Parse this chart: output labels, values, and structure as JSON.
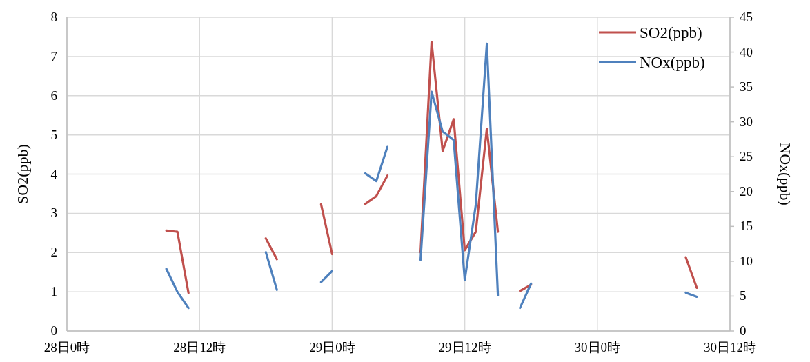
{
  "chart_data": {
    "type": "line",
    "categories": [
      "28日0時",
      null,
      null,
      null,
      null,
      null,
      null,
      null,
      null,
      null,
      null,
      null,
      "28日12時",
      null,
      null,
      null,
      null,
      null,
      null,
      null,
      null,
      null,
      null,
      null,
      "29日0時",
      null,
      null,
      null,
      null,
      null,
      null,
      null,
      null,
      null,
      null,
      null,
      "29日12時",
      null,
      null,
      null,
      null,
      null,
      null,
      null,
      null,
      null,
      null,
      null,
      "30日0時",
      null,
      null,
      null,
      null,
      null,
      null,
      null,
      null,
      null,
      null,
      null,
      "30日12時"
    ],
    "ylim": [
      0,
      8
    ],
    "yticks": [
      0,
      1,
      2,
      3,
      4,
      5,
      6,
      7,
      8
    ],
    "y2lim": [
      0,
      45
    ],
    "y2ticks": [
      0,
      5,
      10,
      15,
      20,
      25,
      30,
      35,
      40,
      45
    ],
    "ylabel": "SO2(ppb)",
    "y2label": "NOx(ppb)",
    "series": [
      {
        "name": "SO2(ppb)",
        "color": "#c0504d",
        "values": [
          null,
          null,
          null,
          null,
          null,
          null,
          null,
          null,
          null,
          2.56,
          2.53,
          0.97,
          null,
          null,
          null,
          null,
          null,
          null,
          2.36,
          1.83,
          null,
          null,
          null,
          3.23,
          1.96,
          null,
          null,
          3.24,
          3.44,
          3.96,
          null,
          null,
          2.0,
          7.37,
          4.59,
          5.4,
          2.06,
          2.53,
          5.16,
          2.53,
          null,
          1.02,
          1.18,
          null,
          null,
          null,
          null,
          null,
          null,
          null,
          null,
          null,
          null,
          null,
          null,
          null,
          1.88,
          1.1,
          null,
          null,
          null
        ]
      },
      {
        "name": "NOx(ppb)",
        "color": "#4f81bd",
        "axis": "y2",
        "values": [
          null,
          null,
          null,
          null,
          null,
          null,
          null,
          null,
          null,
          8.9,
          5.6,
          3.3,
          null,
          null,
          null,
          null,
          null,
          null,
          11.3,
          5.9,
          null,
          null,
          null,
          7.0,
          8.6,
          null,
          null,
          22.6,
          21.5,
          26.4,
          null,
          null,
          10.2,
          34.3,
          28.6,
          27.4,
          7.3,
          18.1,
          41.2,
          5.1,
          null,
          3.3,
          6.8,
          null,
          null,
          null,
          null,
          null,
          null,
          null,
          null,
          null,
          null,
          null,
          null,
          null,
          5.5,
          4.9,
          null,
          null,
          null
        ]
      }
    ],
    "grid": true,
    "legend": "top right"
  }
}
